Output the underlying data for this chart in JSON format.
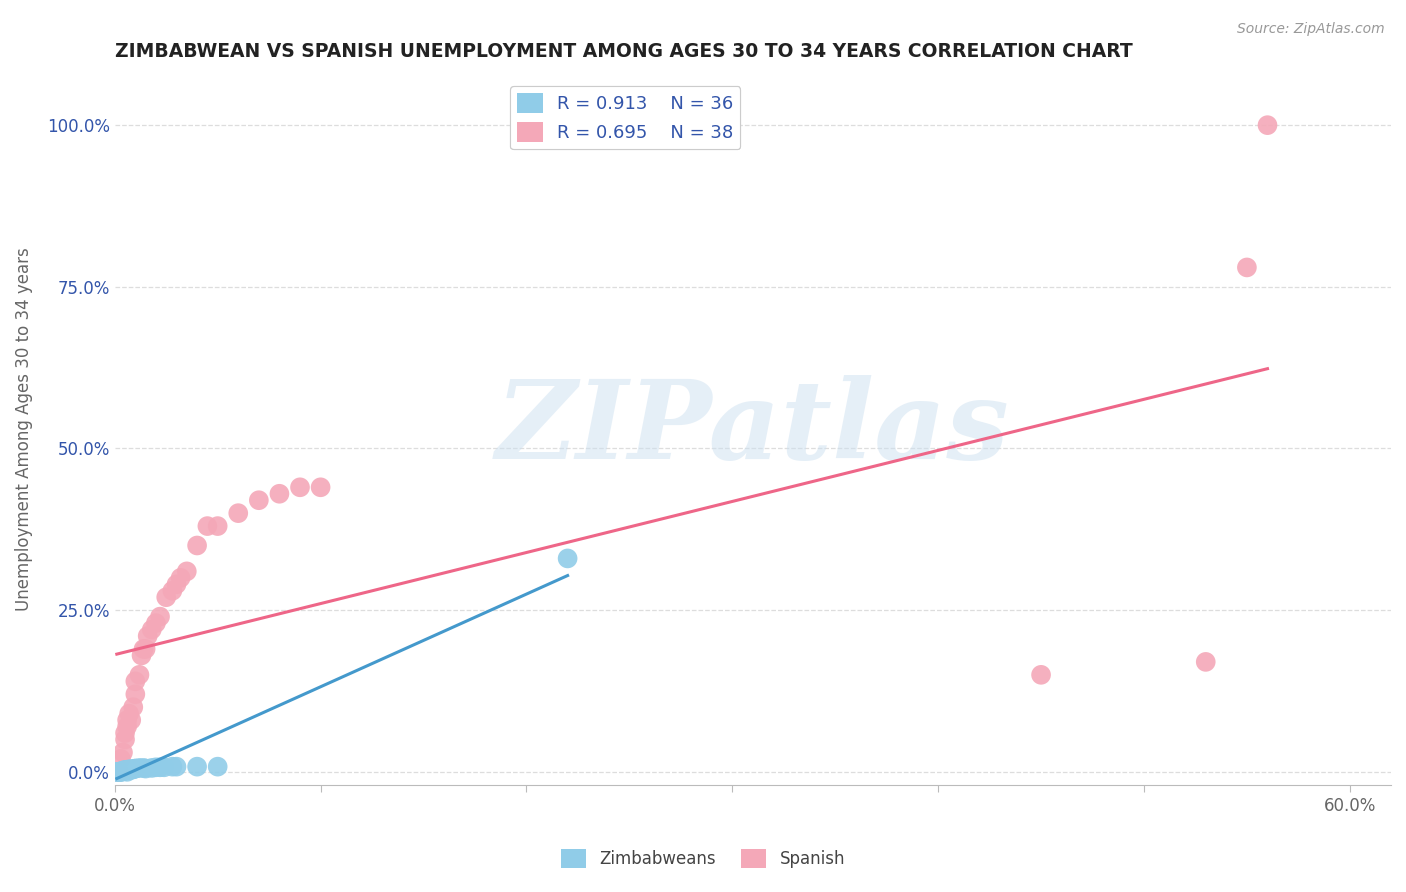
{
  "title": "ZIMBABWEAN VS SPANISH UNEMPLOYMENT AMONG AGES 30 TO 34 YEARS CORRELATION CHART",
  "source_text": "Source: ZipAtlas.com",
  "ylabel": "Unemployment Among Ages 30 to 34 years",
  "xlim": [
    0.0,
    0.62
  ],
  "ylim": [
    -0.02,
    1.08
  ],
  "xtick_positions": [
    0.0,
    0.1,
    0.2,
    0.3,
    0.4,
    0.5,
    0.6
  ],
  "xticklabels": [
    "0.0%",
    "",
    "",
    "",
    "",
    "",
    "60.0%"
  ],
  "ytick_positions": [
    0.0,
    0.25,
    0.5,
    0.75,
    1.0
  ],
  "yticklabels": [
    "0.0%",
    "25.0%",
    "50.0%",
    "75.0%",
    "100.0%"
  ],
  "zimbabweans_x": [
    0.001,
    0.001,
    0.001,
    0.002,
    0.002,
    0.003,
    0.003,
    0.003,
    0.003,
    0.004,
    0.004,
    0.004,
    0.005,
    0.005,
    0.005,
    0.006,
    0.006,
    0.007,
    0.007,
    0.008,
    0.008,
    0.009,
    0.01,
    0.01,
    0.012,
    0.014,
    0.015,
    0.018,
    0.02,
    0.022,
    0.024,
    0.028,
    0.03,
    0.04,
    0.05,
    0.22
  ],
  "zimbabweans_y": [
    0.0,
    0.0,
    0.0,
    0.0,
    0.0,
    0.0,
    0.0,
    0.0,
    0.001,
    0.001,
    0.001,
    0.002,
    0.002,
    0.002,
    0.003,
    0.0,
    0.003,
    0.003,
    0.004,
    0.003,
    0.004,
    0.004,
    0.005,
    0.005,
    0.006,
    0.006,
    0.005,
    0.006,
    0.007,
    0.007,
    0.007,
    0.008,
    0.008,
    0.008,
    0.008,
    0.33
  ],
  "spanish_x": [
    0.001,
    0.002,
    0.003,
    0.004,
    0.005,
    0.005,
    0.006,
    0.006,
    0.007,
    0.008,
    0.009,
    0.01,
    0.01,
    0.012,
    0.013,
    0.014,
    0.015,
    0.016,
    0.018,
    0.02,
    0.022,
    0.025,
    0.028,
    0.03,
    0.032,
    0.035,
    0.04,
    0.045,
    0.05,
    0.06,
    0.07,
    0.08,
    0.09,
    0.1,
    0.45,
    0.53,
    0.55,
    0.56
  ],
  "spanish_y": [
    0.0,
    0.0,
    0.02,
    0.03,
    0.05,
    0.06,
    0.07,
    0.08,
    0.09,
    0.08,
    0.1,
    0.12,
    0.14,
    0.15,
    0.18,
    0.19,
    0.19,
    0.21,
    0.22,
    0.23,
    0.24,
    0.27,
    0.28,
    0.29,
    0.3,
    0.31,
    0.35,
    0.38,
    0.38,
    0.4,
    0.42,
    0.43,
    0.44,
    0.44,
    0.15,
    0.17,
    0.78,
    1.0
  ],
  "zim_color": "#90cce8",
  "spanish_color": "#f4a8b8",
  "zim_line_color": "#4499cc",
  "spanish_line_color": "#ee6688",
  "zim_R": "0.913",
  "zim_N": "36",
  "spanish_R": "0.695",
  "spanish_N": "38",
  "legend_text_color": "#3355aa",
  "watermark": "ZIPatlas",
  "background_color": "#ffffff",
  "grid_color": "#dddddd"
}
